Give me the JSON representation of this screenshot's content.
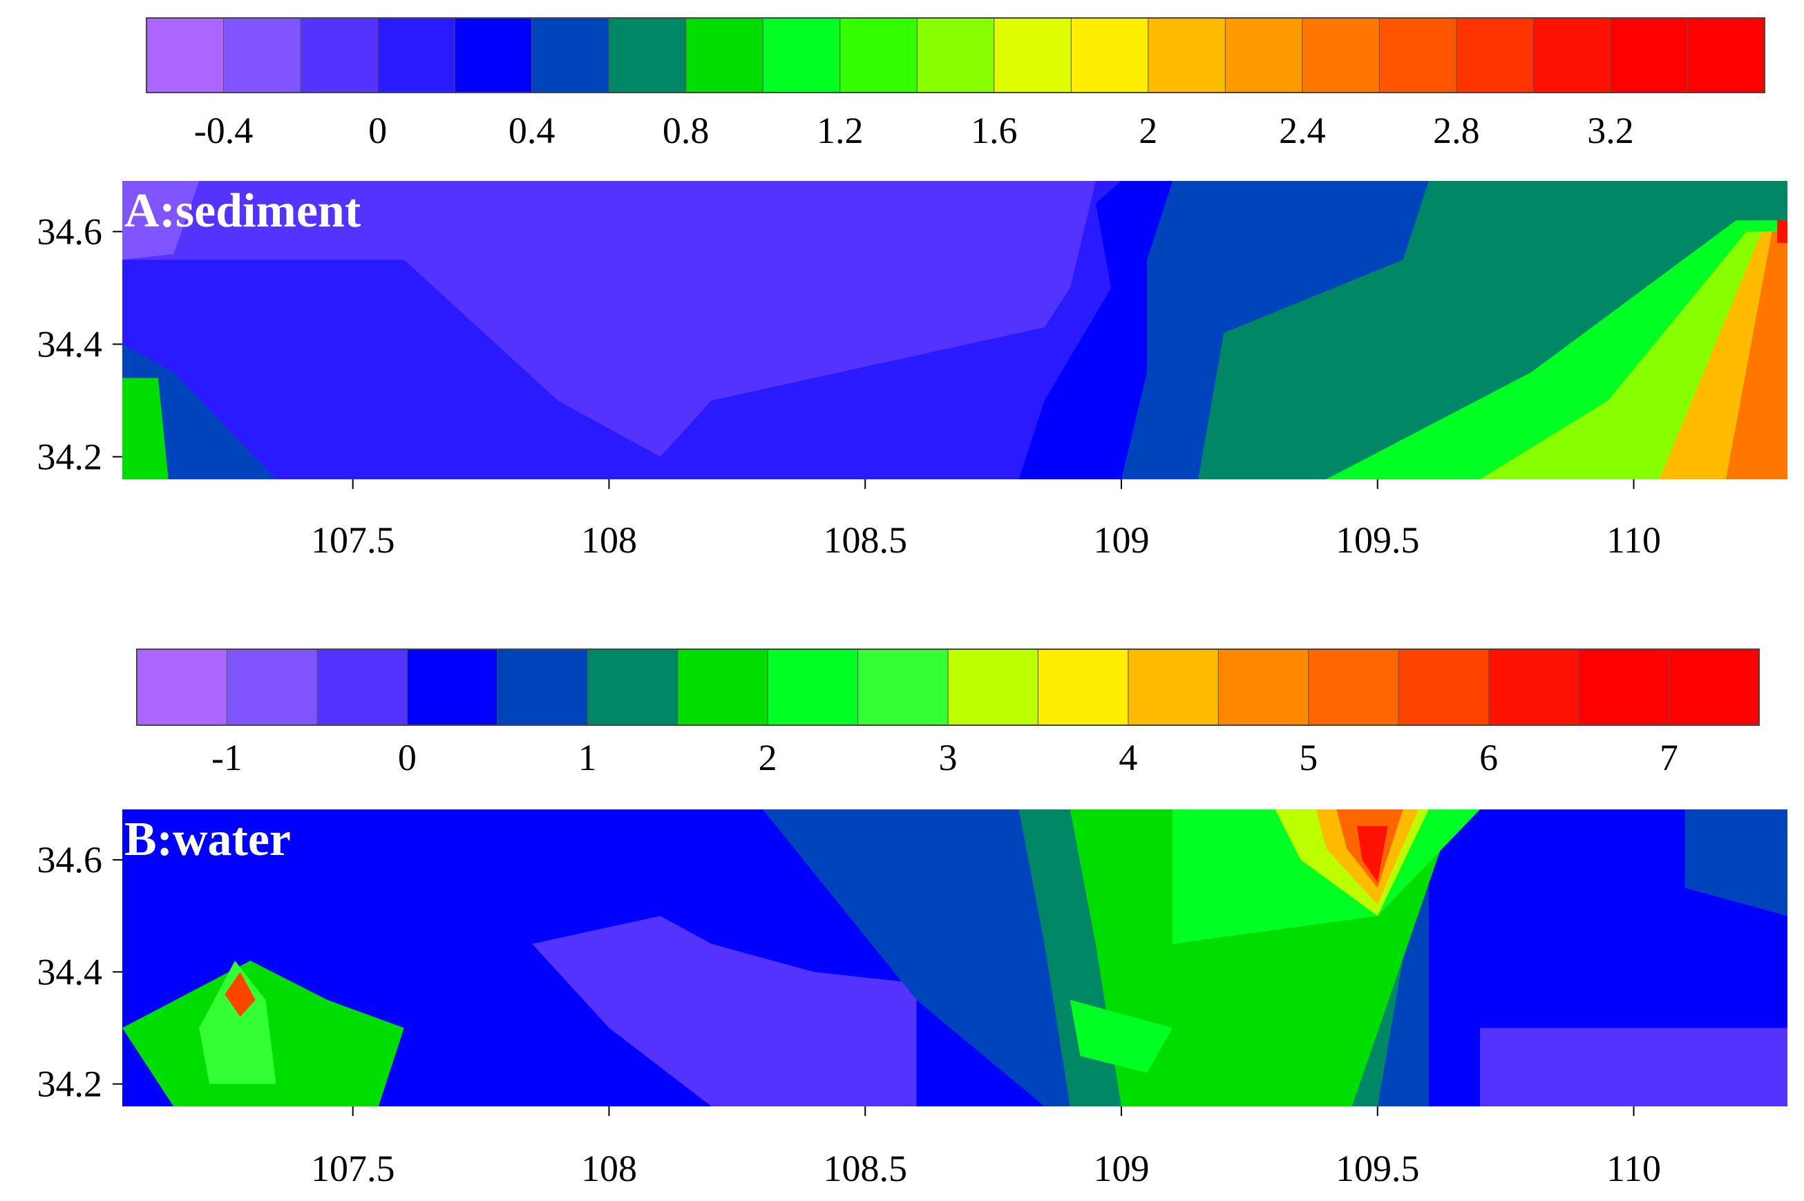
{
  "chart_data": [
    {
      "type": "heatmap",
      "title": "A:sediment",
      "xlabel": "",
      "ylabel": "",
      "xlim": [
        107.05,
        110.3
      ],
      "ylim": [
        34.16,
        34.69
      ],
      "x_ticks": [
        107.5,
        108,
        108.5,
        109,
        109.5,
        110
      ],
      "x_tick_labels": [
        "107.5",
        "108",
        "108.5",
        "109",
        "109.5",
        "110"
      ],
      "y_ticks": [
        34.2,
        34.4,
        34.6
      ],
      "y_tick_labels": [
        "34.2",
        "34.4",
        "34.6"
      ],
      "colorbar": {
        "min": -0.6,
        "max": 3.6,
        "step": 0.2,
        "tick_values": [
          -0.4,
          0,
          0.4,
          0.8,
          1.2,
          1.6,
          2,
          2.4,
          2.8,
          3.2
        ],
        "tick_labels": [
          "-0.4",
          "0",
          "0.4",
          "0.8",
          "1.2",
          "1.6",
          "2",
          "2.4",
          "2.8",
          "3.2"
        ],
        "colors": [
          "#aa66ff",
          "#8055ff",
          "#5533ff",
          "#2a1aff",
          "#0000ff",
          "#0044bb",
          "#008866",
          "#00dd00",
          "#00ff22",
          "#33ff00",
          "#88ff00",
          "#ddff00",
          "#ffee00",
          "#ffbb00",
          "#ff9900",
          "#ff7700",
          "#ff5500",
          "#ff3300",
          "#ff1100",
          "#ff0000",
          "#ff0000"
        ]
      },
      "background_level": 0.0,
      "regions": [
        {
          "level": 0.2,
          "polygon": [
            [
              109.0,
              34.69
            ],
            [
              110.3,
              34.69
            ],
            [
              110.3,
              34.16
            ],
            [
              108.8,
              34.16
            ],
            [
              108.85,
              34.3
            ],
            [
              108.98,
              34.5
            ],
            [
              108.95,
              34.65
            ]
          ]
        },
        {
          "level": 0.4,
          "polygon": [
            [
              109.1,
              34.69
            ],
            [
              110.3,
              34.69
            ],
            [
              110.3,
              34.16
            ],
            [
              109.0,
              34.16
            ],
            [
              109.05,
              34.35
            ],
            [
              109.05,
              34.55
            ]
          ]
        },
        {
          "level": 0.6,
          "polygon": [
            [
              109.6,
              34.69
            ],
            [
              110.3,
              34.69
            ],
            [
              110.3,
              34.16
            ],
            [
              109.15,
              34.16
            ],
            [
              109.2,
              34.42
            ],
            [
              109.55,
              34.55
            ]
          ]
        },
        {
          "level": 1.0,
          "polygon": [
            [
              110.2,
              34.62
            ],
            [
              110.3,
              34.62
            ],
            [
              110.3,
              34.16
            ],
            [
              109.4,
              34.16
            ],
            [
              109.8,
              34.35
            ]
          ]
        },
        {
          "level": 1.4,
          "polygon": [
            [
              110.22,
              34.6
            ],
            [
              110.3,
              34.6
            ],
            [
              110.3,
              34.16
            ],
            [
              109.7,
              34.16
            ],
            [
              109.95,
              34.3
            ]
          ]
        },
        {
          "level": 2.0,
          "polygon": [
            [
              110.25,
              34.6
            ],
            [
              110.3,
              34.6
            ],
            [
              110.3,
              34.16
            ],
            [
              110.05,
              34.16
            ]
          ]
        },
        {
          "level": 2.4,
          "polygon": [
            [
              110.27,
              34.6
            ],
            [
              110.3,
              34.6
            ],
            [
              110.3,
              34.16
            ],
            [
              110.18,
              34.16
            ]
          ]
        },
        {
          "level": 3.0,
          "polygon": [
            [
              110.28,
              34.62
            ],
            [
              110.3,
              34.62
            ],
            [
              110.3,
              34.58
            ],
            [
              110.28,
              34.58
            ]
          ]
        },
        {
          "level": -0.2,
          "polygon": [
            [
              107.05,
              34.69
            ],
            [
              108.95,
              34.69
            ],
            [
              108.9,
              34.5
            ],
            [
              108.85,
              34.43
            ],
            [
              108.2,
              34.3
            ],
            [
              108.1,
              34.2
            ],
            [
              107.9,
              34.3
            ],
            [
              107.6,
              34.55
            ],
            [
              107.3,
              34.55
            ],
            [
              107.05,
              34.55
            ]
          ]
        },
        {
          "level": -0.4,
          "polygon": [
            [
              107.05,
              34.69
            ],
            [
              107.2,
              34.69
            ],
            [
              107.15,
              34.56
            ],
            [
              107.05,
              34.55
            ]
          ]
        },
        {
          "level": 0.4,
          "polygon": [
            [
              107.05,
              34.4
            ],
            [
              107.15,
              34.35
            ],
            [
              107.35,
              34.16
            ],
            [
              107.05,
              34.16
            ]
          ]
        },
        {
          "level": 0.8,
          "polygon": [
            [
              107.05,
              34.34
            ],
            [
              107.12,
              34.34
            ],
            [
              107.14,
              34.16
            ],
            [
              107.05,
              34.16
            ]
          ]
        }
      ]
    },
    {
      "type": "heatmap",
      "title": "B:water",
      "xlabel": "",
      "ylabel": "",
      "xlim": [
        107.05,
        110.3
      ],
      "ylim": [
        34.16,
        34.69
      ],
      "x_ticks": [
        107.5,
        108,
        108.5,
        109,
        109.5,
        110
      ],
      "x_tick_labels": [
        "107.5",
        "108",
        "108.5",
        "109",
        "109.5",
        "110"
      ],
      "y_ticks": [
        34.2,
        34.4,
        34.6
      ],
      "y_tick_labels": [
        "34.2",
        "34.4",
        "34.6"
      ],
      "colorbar": {
        "min": -1.5,
        "max": 7.5,
        "step": 0.5,
        "tick_values": [
          -1,
          0,
          1,
          2,
          3,
          4,
          5,
          6,
          7
        ],
        "tick_labels": [
          "-1",
          "0",
          "1",
          "2",
          "3",
          "4",
          "5",
          "6",
          "7"
        ],
        "colors": [
          "#aa66ff",
          "#8055ff",
          "#5533ff",
          "#0000ff",
          "#0044bb",
          "#008866",
          "#00dd00",
          "#00ff22",
          "#33ff33",
          "#bbff00",
          "#ffee00",
          "#ffbb00",
          "#ff8800",
          "#ff6600",
          "#ff4400",
          "#ff1100",
          "#ff0000",
          "#ff0000"
        ]
      },
      "background_level": 0.0,
      "regions": [
        {
          "level": -0.5,
          "polygon": [
            [
              107.85,
              34.45
            ],
            [
              108.1,
              34.5
            ],
            [
              108.2,
              34.45
            ],
            [
              108.4,
              34.4
            ],
            [
              108.6,
              34.38
            ],
            [
              108.6,
              34.16
            ],
            [
              108.2,
              34.16
            ],
            [
              108.0,
              34.3
            ]
          ]
        },
        {
          "level": 0.5,
          "polygon": [
            [
              108.3,
              34.69
            ],
            [
              109.6,
              34.69
            ],
            [
              109.6,
              34.16
            ],
            [
              108.85,
              34.16
            ],
            [
              108.6,
              34.35
            ]
          ]
        },
        {
          "level": 1.0,
          "polygon": [
            [
              108.8,
              34.69
            ],
            [
              109.6,
              34.69
            ],
            [
              109.5,
              34.16
            ],
            [
              108.9,
              34.16
            ],
            [
              108.85,
              34.45
            ]
          ]
        },
        {
          "level": 1.5,
          "polygon": [
            [
              108.9,
              34.69
            ],
            [
              109.65,
              34.69
            ],
            [
              109.45,
              34.16
            ],
            [
              109.0,
              34.16
            ],
            [
              108.95,
              34.45
            ]
          ]
        },
        {
          "level": 2.0,
          "polygon": [
            [
              109.1,
              34.69
            ],
            [
              109.7,
              34.69
            ],
            [
              109.5,
              34.5
            ],
            [
              109.1,
              34.45
            ]
          ]
        },
        {
          "level": 2.0,
          "polygon": [
            [
              108.9,
              34.35
            ],
            [
              109.1,
              34.3
            ],
            [
              109.05,
              34.22
            ],
            [
              108.92,
              34.25
            ]
          ]
        },
        {
          "level": 3.0,
          "polygon": [
            [
              109.3,
              34.69
            ],
            [
              109.6,
              34.69
            ],
            [
              109.5,
              34.5
            ],
            [
              109.35,
              34.6
            ]
          ]
        },
        {
          "level": 4.0,
          "polygon": [
            [
              109.38,
              34.69
            ],
            [
              109.58,
              34.69
            ],
            [
              109.5,
              34.52
            ],
            [
              109.4,
              34.62
            ]
          ]
        },
        {
          "level": 5.0,
          "polygon": [
            [
              109.42,
              34.69
            ],
            [
              109.55,
              34.69
            ],
            [
              109.5,
              34.55
            ],
            [
              109.44,
              34.62
            ]
          ]
        },
        {
          "level": 6.0,
          "polygon": [
            [
              109.46,
              34.66
            ],
            [
              109.52,
              34.66
            ],
            [
              109.5,
              34.56
            ],
            [
              109.47,
              34.6
            ]
          ]
        },
        {
          "level": 1.5,
          "polygon": [
            [
              107.05,
              34.3
            ],
            [
              107.3,
              34.42
            ],
            [
              107.45,
              34.35
            ],
            [
              107.6,
              34.3
            ],
            [
              107.55,
              34.16
            ],
            [
              107.15,
              34.16
            ]
          ]
        },
        {
          "level": 2.5,
          "polygon": [
            [
              107.2,
              34.3
            ],
            [
              107.27,
              34.42
            ],
            [
              107.33,
              34.35
            ],
            [
              107.35,
              34.2
            ],
            [
              107.22,
              34.2
            ]
          ]
        },
        {
          "level": 5.5,
          "polygon": [
            [
              107.25,
              34.36
            ],
            [
              107.28,
              34.4
            ],
            [
              107.31,
              34.35
            ],
            [
              107.28,
              34.32
            ]
          ]
        },
        {
          "level": -0.5,
          "polygon": [
            [
              109.7,
              34.3
            ],
            [
              110.3,
              34.3
            ],
            [
              110.3,
              34.16
            ],
            [
              109.7,
              34.16
            ]
          ]
        },
        {
          "level": 0.5,
          "polygon": [
            [
              110.1,
              34.69
            ],
            [
              110.3,
              34.69
            ],
            [
              110.3,
              34.5
            ],
            [
              110.1,
              34.55
            ]
          ]
        }
      ]
    }
  ]
}
